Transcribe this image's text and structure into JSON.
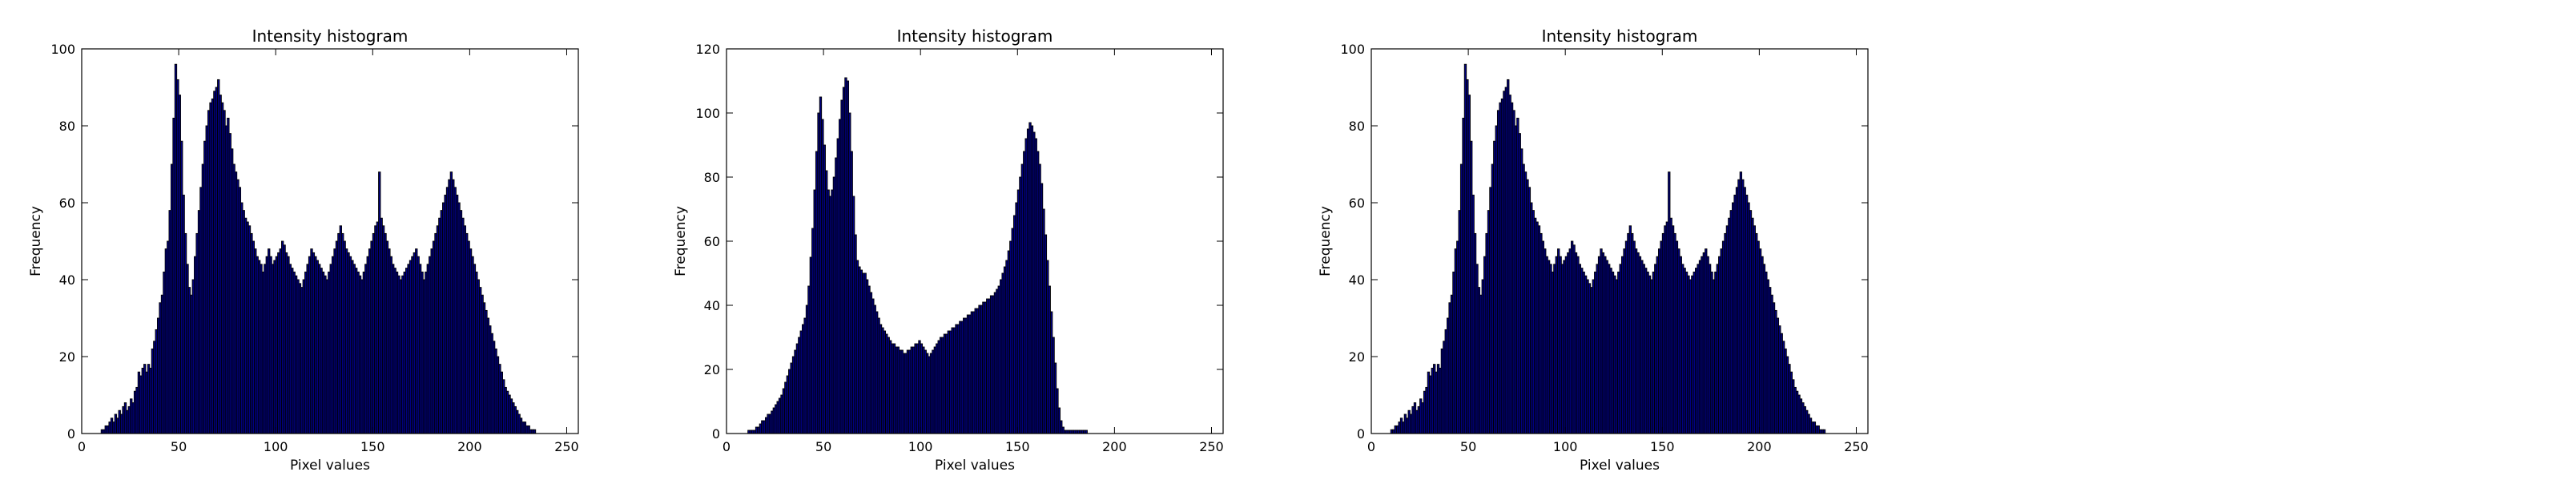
{
  "figure": {
    "bar_color": "#00007f",
    "edge_color": "#000000",
    "background": "#ffffff"
  },
  "chart_data": [
    {
      "type": "bar",
      "title": "Intensity histogram",
      "xlabel": "Pixel values",
      "ylabel": "Frequency",
      "xlim": [
        0,
        256
      ],
      "ylim": [
        0,
        100
      ],
      "xticks": [
        0,
        50,
        100,
        150,
        200,
        250
      ],
      "yticks": [
        0,
        20,
        40,
        60,
        80,
        100
      ],
      "grid": false,
      "bins_start": 0,
      "bin_width": 1,
      "values": [
        0,
        0,
        0,
        0,
        0,
        0,
        0,
        0,
        0,
        0,
        1,
        1,
        2,
        2,
        3,
        4,
        3,
        5,
        4,
        6,
        5,
        7,
        8,
        6,
        7,
        9,
        8,
        11,
        12,
        16,
        15,
        17,
        18,
        16,
        18,
        17,
        22,
        24,
        27,
        30,
        34,
        36,
        42,
        48,
        50,
        58,
        70,
        82,
        96,
        92,
        88,
        76,
        62,
        52,
        44,
        38,
        36,
        40,
        46,
        52,
        58,
        64,
        70,
        76,
        80,
        84,
        86,
        87,
        89,
        90,
        92,
        88,
        86,
        84,
        80,
        82,
        78,
        74,
        70,
        68,
        66,
        64,
        60,
        58,
        56,
        55,
        54,
        52,
        50,
        48,
        46,
        45,
        44,
        42,
        44,
        46,
        48,
        46,
        44,
        45,
        46,
        47,
        48,
        50,
        49,
        47,
        46,
        44,
        43,
        42,
        41,
        40,
        39,
        38,
        40,
        42,
        44,
        46,
        48,
        47,
        46,
        45,
        44,
        43,
        42,
        41,
        40,
        42,
        44,
        46,
        48,
        50,
        52,
        54,
        52,
        50,
        48,
        47,
        46,
        45,
        44,
        43,
        42,
        41,
        40,
        42,
        44,
        46,
        48,
        50,
        52,
        54,
        55,
        68,
        56,
        54,
        52,
        50,
        48,
        46,
        44,
        43,
        42,
        41,
        40,
        41,
        42,
        43,
        44,
        45,
        46,
        47,
        48,
        46,
        44,
        42,
        40,
        42,
        44,
        46,
        48,
        50,
        52,
        54,
        56,
        58,
        60,
        62,
        64,
        66,
        68,
        66,
        64,
        62,
        60,
        58,
        56,
        54,
        52,
        50,
        48,
        46,
        44,
        42,
        40,
        38,
        36,
        34,
        32,
        30,
        28,
        26,
        24,
        22,
        20,
        18,
        16,
        14,
        12,
        11,
        10,
        9,
        8,
        7,
        6,
        5,
        4,
        3,
        3,
        2,
        2,
        1,
        1,
        1,
        0,
        0,
        0,
        0,
        0,
        0,
        0,
        0,
        0,
        0,
        0,
        0,
        0,
        0,
        0,
        0,
        0,
        0,
        0,
        0,
        0,
        0
      ]
    },
    {
      "type": "bar",
      "title": "Intensity histogram",
      "xlabel": "Pixel values",
      "ylabel": "Frequency",
      "xlim": [
        0,
        256
      ],
      "ylim": [
        0,
        120
      ],
      "xticks": [
        0,
        50,
        100,
        150,
        200,
        250
      ],
      "yticks": [
        0,
        20,
        40,
        60,
        80,
        100,
        120
      ],
      "grid": false,
      "bins_start": 0,
      "bin_width": 1,
      "values": [
        0,
        0,
        0,
        0,
        0,
        0,
        0,
        0,
        0,
        0,
        0,
        1,
        1,
        1,
        1,
        2,
        2,
        3,
        4,
        4,
        5,
        6,
        6,
        7,
        8,
        9,
        10,
        11,
        12,
        14,
        16,
        18,
        20,
        22,
        24,
        26,
        28,
        30,
        32,
        34,
        36,
        40,
        46,
        55,
        64,
        76,
        88,
        100,
        105,
        98,
        90,
        82,
        76,
        74,
        76,
        80,
        86,
        92,
        98,
        104,
        108,
        111,
        110,
        100,
        88,
        74,
        62,
        54,
        52,
        51,
        50,
        50,
        48,
        46,
        44,
        42,
        40,
        38,
        36,
        34,
        33,
        32,
        31,
        30,
        29,
        28,
        28,
        27,
        27,
        26,
        26,
        25,
        25,
        26,
        26,
        27,
        27,
        28,
        28,
        29,
        28,
        27,
        26,
        25,
        24,
        25,
        26,
        27,
        28,
        29,
        30,
        30,
        31,
        31,
        32,
        32,
        33,
        33,
        34,
        34,
        35,
        35,
        36,
        36,
        37,
        37,
        38,
        38,
        39,
        39,
        40,
        40,
        41,
        41,
        42,
        42,
        43,
        43,
        44,
        45,
        46,
        48,
        50,
        52,
        54,
        57,
        60,
        64,
        68,
        72,
        76,
        80,
        84,
        88,
        92,
        95,
        97,
        96,
        94,
        92,
        88,
        84,
        78,
        70,
        62,
        54,
        46,
        38,
        30,
        22,
        14,
        8,
        4,
        2,
        1,
        1,
        1,
        1,
        1,
        1,
        1,
        1,
        1,
        1,
        1,
        1,
        0,
        0,
        0,
        0,
        0,
        0,
        0,
        0,
        0,
        0,
        0,
        0,
        0,
        0,
        0,
        0,
        0,
        0,
        0,
        0,
        0,
        0,
        0,
        0,
        0,
        0,
        0,
        0,
        0,
        0,
        0,
        0,
        0,
        0,
        0,
        0,
        0,
        0,
        0,
        0,
        0,
        0,
        0,
        0,
        0,
        0,
        0,
        0,
        0,
        0,
        0,
        0,
        0,
        0,
        0,
        0,
        0,
        0,
        0,
        0,
        0,
        0,
        0,
        0,
        0,
        0,
        0,
        0,
        0
      ]
    },
    {
      "type": "bar",
      "title": "Intensity histogram",
      "xlabel": "Pixel values",
      "ylabel": "Frequency",
      "xlim": [
        0,
        256
      ],
      "ylim": [
        0,
        100
      ],
      "xticks": [
        0,
        50,
        100,
        150,
        200,
        250
      ],
      "yticks": [
        0,
        20,
        40,
        60,
        80,
        100
      ],
      "grid": false,
      "bins_start": 0,
      "bin_width": 1,
      "values": [
        0,
        0,
        0,
        0,
        0,
        0,
        0,
        0,
        0,
        0,
        1,
        1,
        2,
        2,
        3,
        4,
        3,
        5,
        4,
        6,
        5,
        7,
        8,
        6,
        7,
        9,
        8,
        11,
        12,
        16,
        15,
        17,
        18,
        16,
        18,
        17,
        22,
        24,
        27,
        30,
        34,
        36,
        42,
        48,
        50,
        58,
        70,
        82,
        96,
        92,
        88,
        76,
        62,
        52,
        44,
        38,
        36,
        40,
        46,
        52,
        58,
        64,
        70,
        76,
        80,
        84,
        86,
        87,
        89,
        90,
        92,
        88,
        86,
        84,
        80,
        82,
        78,
        74,
        70,
        68,
        66,
        64,
        60,
        58,
        56,
        55,
        54,
        52,
        50,
        48,
        46,
        45,
        44,
        42,
        44,
        46,
        48,
        46,
        44,
        45,
        46,
        47,
        48,
        50,
        49,
        47,
        46,
        44,
        43,
        42,
        41,
        40,
        39,
        38,
        40,
        42,
        44,
        46,
        48,
        47,
        46,
        45,
        44,
        43,
        42,
        41,
        40,
        42,
        44,
        46,
        48,
        50,
        52,
        54,
        52,
        50,
        48,
        47,
        46,
        45,
        44,
        43,
        42,
        41,
        40,
        42,
        44,
        46,
        48,
        50,
        52,
        54,
        55,
        68,
        56,
        54,
        52,
        50,
        48,
        46,
        44,
        43,
        42,
        41,
        40,
        41,
        42,
        43,
        44,
        45,
        46,
        47,
        48,
        46,
        44,
        42,
        40,
        42,
        44,
        46,
        48,
        50,
        52,
        54,
        56,
        58,
        60,
        62,
        64,
        66,
        68,
        66,
        64,
        62,
        60,
        58,
        56,
        54,
        52,
        50,
        48,
        46,
        44,
        42,
        40,
        38,
        36,
        34,
        32,
        30,
        28,
        26,
        24,
        22,
        20,
        18,
        16,
        14,
        12,
        11,
        10,
        9,
        8,
        7,
        6,
        5,
        4,
        3,
        3,
        2,
        2,
        1,
        1,
        1,
        0,
        0,
        0,
        0,
        0,
        0,
        0,
        0,
        0,
        0,
        0,
        0,
        0,
        0,
        0,
        0,
        0,
        0,
        0,
        0,
        0,
        0
      ]
    }
  ]
}
